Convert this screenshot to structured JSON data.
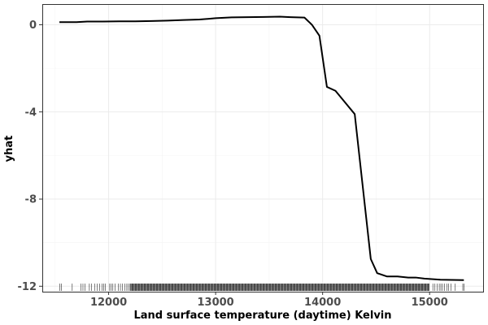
{
  "chart_data": {
    "type": "line",
    "xlabel": "Land surface temperature (daytime) Kelvin",
    "ylabel": "yhat",
    "xlim": [
      11380,
      15500
    ],
    "ylim": [
      -12.25,
      0.95
    ],
    "x_ticks": [
      12000,
      13000,
      14000,
      15000
    ],
    "y_ticks": [
      0,
      -4,
      -8,
      -12
    ],
    "grid": true,
    "series": [
      {
        "x": [
          11540,
          11700,
          11800,
          11950,
          12100,
          12250,
          12400,
          12550,
          12700,
          12850,
          13000,
          13150,
          13300,
          13450,
          13600,
          13700,
          13830,
          13900,
          13970,
          14040,
          14120,
          14300,
          14450,
          14510,
          14600,
          14700,
          14800,
          14870,
          14950,
          15100,
          15320
        ],
        "values": [
          0.12,
          0.12,
          0.15,
          0.15,
          0.16,
          0.16,
          0.17,
          0.19,
          0.22,
          0.24,
          0.3,
          0.34,
          0.35,
          0.36,
          0.37,
          0.35,
          0.33,
          0.0,
          -0.5,
          -2.85,
          -3.03,
          -4.1,
          -10.75,
          -11.4,
          -11.55,
          -11.55,
          -11.6,
          -11.6,
          -11.65,
          -11.7,
          -11.72
        ]
      }
    ],
    "rug": {
      "range": [
        11540,
        15320
      ],
      "sparse": [
        11545,
        11560,
        11660,
        11740,
        11760,
        11780,
        11820,
        11840,
        11870,
        11895,
        11915,
        11940,
        11955,
        11970,
        12010,
        12025,
        12040,
        12060,
        12090,
        12110,
        12130,
        12150,
        12170,
        12185,
        15030,
        15050,
        15070,
        15090,
        15105,
        15120,
        15140,
        15160,
        15175,
        15200,
        15240,
        15310,
        15320
      ],
      "dense_range": [
        12200,
        15000
      ]
    }
  }
}
